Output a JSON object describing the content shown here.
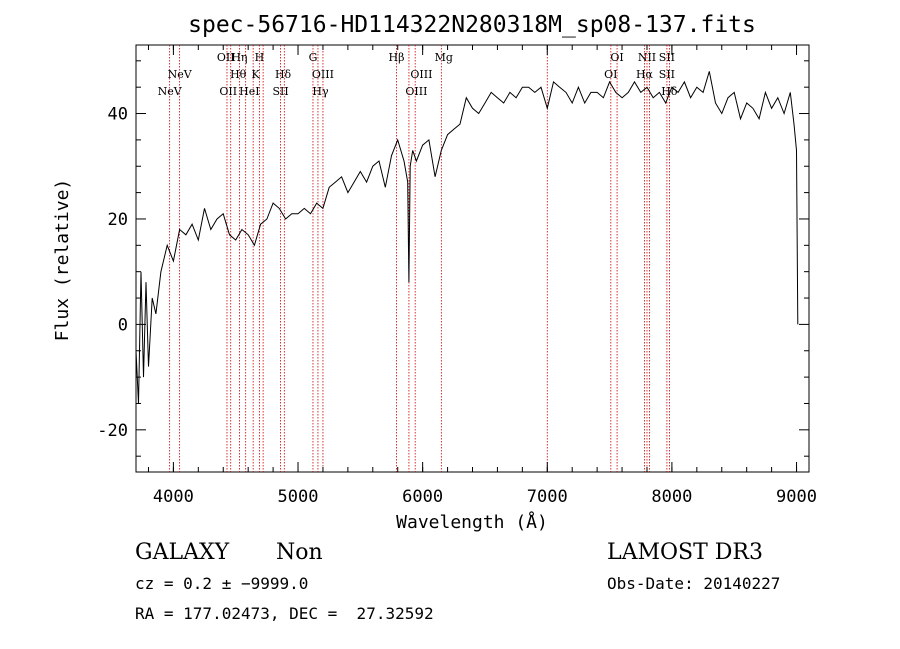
{
  "chart_data": {
    "type": "line",
    "title": "spec-56716-HD114322N280318M_sp08-137.fits",
    "xlabel": "Wavelength (Å)",
    "ylabel": "Flux (relative)",
    "xlim": [
      3700,
      9100
    ],
    "ylim": [
      -28,
      53
    ],
    "x_ticks": [
      4000,
      5000,
      6000,
      7000,
      8000,
      9000
    ],
    "y_ticks": [
      -20,
      0,
      20,
      40
    ],
    "line_color": "#cc0000",
    "series": [
      {
        "name": "flux",
        "x": [
          3700,
          3720,
          3740,
          3760,
          3780,
          3800,
          3830,
          3860,
          3900,
          3950,
          4000,
          4050,
          4100,
          4150,
          4200,
          4250,
          4300,
          4350,
          4400,
          4450,
          4500,
          4550,
          4600,
          4650,
          4700,
          4750,
          4800,
          4850,
          4900,
          4950,
          5000,
          5050,
          5100,
          5150,
          5200,
          5250,
          5300,
          5350,
          5400,
          5450,
          5500,
          5550,
          5600,
          5650,
          5700,
          5750,
          5800,
          5850,
          5880,
          5890,
          5900,
          5920,
          5950,
          6000,
          6050,
          6100,
          6150,
          6200,
          6250,
          6300,
          6350,
          6400,
          6450,
          6500,
          6550,
          6600,
          6650,
          6700,
          6750,
          6800,
          6850,
          6900,
          6950,
          7000,
          7050,
          7100,
          7150,
          7200,
          7250,
          7300,
          7350,
          7400,
          7450,
          7500,
          7550,
          7600,
          7650,
          7700,
          7750,
          7800,
          7850,
          7900,
          7950,
          8000,
          8050,
          8100,
          8150,
          8200,
          8250,
          8300,
          8350,
          8400,
          8450,
          8500,
          8550,
          8600,
          8650,
          8700,
          8750,
          8800,
          8850,
          8900,
          8950,
          8980,
          9000,
          9010
        ],
        "y": [
          -5,
          -15,
          10,
          -10,
          8,
          -8,
          5,
          2,
          10,
          15,
          12,
          18,
          17,
          19,
          16,
          22,
          18,
          20,
          21,
          17,
          16,
          18,
          17,
          15,
          19,
          20,
          23,
          22,
          20,
          21,
          21,
          22,
          21,
          23,
          22,
          26,
          27,
          28,
          25,
          27,
          29,
          27,
          30,
          31,
          26,
          32,
          35,
          31,
          27,
          8,
          30,
          33,
          31,
          34,
          35,
          28,
          33,
          36,
          37,
          38,
          43,
          41,
          40,
          42,
          44,
          43,
          42,
          44,
          43,
          45,
          45,
          44,
          45,
          41,
          46,
          45,
          44,
          42,
          45,
          42,
          44,
          44,
          43,
          46,
          44,
          43,
          44,
          46,
          44,
          45,
          43,
          44,
          42,
          45,
          44,
          46,
          43,
          45,
          44,
          48,
          42,
          40,
          43,
          44,
          39,
          42,
          41,
          39,
          44,
          41,
          43,
          40,
          44,
          38,
          33,
          0
        ]
      }
    ],
    "line_labels": [
      {
        "name": "NeV",
        "x": 3970,
        "row": 3
      },
      {
        "name": "NeV",
        "x": 4050,
        "row": 2
      },
      {
        "name": "OII",
        "x": 4420,
        "row": 1
      },
      {
        "name": "Hη",
        "x": 4530,
        "row": 1
      },
      {
        "name": "H",
        "x": 4690,
        "row": 1
      },
      {
        "name": "Hθ",
        "x": 4520,
        "row": 2
      },
      {
        "name": "K",
        "x": 4660,
        "row": 2
      },
      {
        "name": "Hδ",
        "x": 4880,
        "row": 2
      },
      {
        "name": "OII",
        "x": 4440,
        "row": 3
      },
      {
        "name": "HeI",
        "x": 4610,
        "row": 3
      },
      {
        "name": "SII",
        "x": 4860,
        "row": 3
      },
      {
        "name": "G",
        "x": 5120,
        "row": 1
      },
      {
        "name": "OIII",
        "x": 5200,
        "row": 2
      },
      {
        "name": "Hγ",
        "x": 5180,
        "row": 3
      },
      {
        "name": "Hβ",
        "x": 5790,
        "row": 1
      },
      {
        "name": "Mg",
        "x": 6170,
        "row": 1
      },
      {
        "name": "OIII",
        "x": 5990,
        "row": 2
      },
      {
        "name": "OIII",
        "x": 5950,
        "row": 3
      },
      {
        "name": "OI",
        "x": 7560,
        "row": 1
      },
      {
        "name": "NII",
        "x": 7800,
        "row": 1
      },
      {
        "name": "SII",
        "x": 7960,
        "row": 1
      },
      {
        "name": "OI",
        "x": 7510,
        "row": 2
      },
      {
        "name": "Hα",
        "x": 7780,
        "row": 2
      },
      {
        "name": "SII",
        "x": 7960,
        "row": 2
      },
      {
        "name": "Hδ",
        "x": 7980,
        "row": 3
      }
    ],
    "line_marks": [
      3970,
      4050,
      4430,
      4460,
      4530,
      4580,
      4640,
      4690,
      4720,
      4860,
      4890,
      5120,
      5160,
      5200,
      5790,
      5890,
      5940,
      6150,
      7000,
      7510,
      7560,
      7780,
      7800,
      7820,
      7960,
      7980
    ]
  },
  "footer": {
    "left_line1_class": "GALAXY",
    "left_line1_subclass": "Non",
    "left_line2": "cz = 0.2 ± −9999.0",
    "left_line3": "RA = 177.02473, DEC =  27.32592",
    "right_line1": "LAMOST DR3",
    "right_line2": "Obs-Date: 20140227"
  }
}
